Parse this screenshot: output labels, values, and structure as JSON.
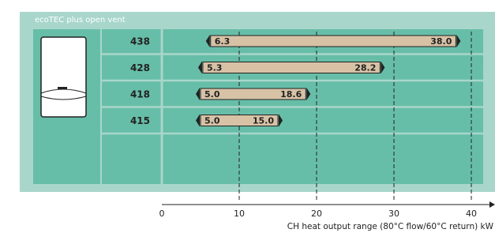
{
  "chart_data": {
    "type": "range_bar",
    "title": "ecoTEC plus open vent",
    "categories": [
      "438",
      "428",
      "418",
      "415"
    ],
    "values": [
      [
        6.3,
        38.0
      ],
      [
        5.3,
        28.2
      ],
      [
        5.0,
        18.6
      ],
      [
        5.0,
        15.0
      ]
    ],
    "value_labels": [
      [
        "6.3",
        "38.0"
      ],
      [
        "5.3",
        "28.2"
      ],
      [
        "5.0",
        "18.6"
      ],
      [
        "5.0",
        "15.0"
      ]
    ],
    "color": "#d8c2a6",
    "xlim": [
      0,
      40
    ],
    "xticks": [
      0,
      10,
      20,
      30,
      40
    ],
    "grid": true,
    "xlabel": "CH heat output range (80°C flow/60°C return) kW"
  }
}
